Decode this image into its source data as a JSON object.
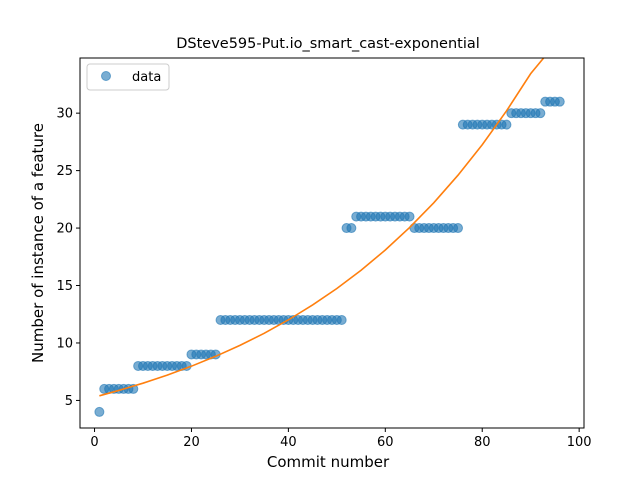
{
  "chart_data": {
    "type": "scatter",
    "title": "DSteve595-Put.io_smart_cast-exponential",
    "xlabel": "Commit number",
    "ylabel": "Number of instance of a feature",
    "xlim": [
      -3,
      101
    ],
    "ylim": [
      2.6,
      34.8
    ],
    "xticks": [
      0,
      20,
      40,
      60,
      80,
      100
    ],
    "yticks": [
      5,
      10,
      15,
      20,
      25,
      30
    ],
    "grid": false,
    "legend": {
      "position": "top-left",
      "entries": [
        "data"
      ]
    },
    "colors": {
      "points": "#1f77b4",
      "fit": "#ff7f0e"
    },
    "series": [
      {
        "name": "data",
        "kind": "scatter",
        "x": [
          1,
          2,
          3,
          4,
          5,
          6,
          7,
          8,
          9,
          10,
          11,
          12,
          13,
          14,
          15,
          16,
          17,
          18,
          19,
          20,
          21,
          22,
          23,
          24,
          25,
          26,
          27,
          28,
          29,
          30,
          31,
          32,
          33,
          34,
          35,
          36,
          37,
          38,
          39,
          40,
          41,
          42,
          43,
          44,
          45,
          46,
          47,
          48,
          49,
          50,
          51,
          52,
          53,
          54,
          55,
          56,
          57,
          58,
          59,
          60,
          61,
          62,
          63,
          64,
          65,
          66,
          67,
          68,
          69,
          70,
          71,
          72,
          73,
          74,
          75,
          76,
          77,
          78,
          79,
          80,
          81,
          82,
          83,
          84,
          85,
          86,
          87,
          88,
          89,
          90,
          91,
          92,
          93,
          94,
          95,
          96
        ],
        "y": [
          4,
          6,
          6,
          6,
          6,
          6,
          6,
          6,
          8,
          8,
          8,
          8,
          8,
          8,
          8,
          8,
          8,
          8,
          8,
          9,
          9,
          9,
          9,
          9,
          9,
          12,
          12,
          12,
          12,
          12,
          12,
          12,
          12,
          12,
          12,
          12,
          12,
          12,
          12,
          12,
          12,
          12,
          12,
          12,
          12,
          12,
          12,
          12,
          12,
          12,
          12,
          20,
          20,
          21,
          21,
          21,
          21,
          21,
          21,
          21,
          21,
          21,
          21,
          21,
          21,
          20,
          20,
          20,
          20,
          20,
          20,
          20,
          20,
          20,
          20,
          29,
          29,
          29,
          29,
          29,
          29,
          29,
          29,
          29,
          29,
          30,
          30,
          30,
          30,
          30,
          30,
          30,
          31,
          31,
          31,
          31
        ]
      },
      {
        "name": "",
        "kind": "line",
        "x": [
          1,
          5,
          10,
          15,
          20,
          25,
          30,
          35,
          40,
          45,
          50,
          55,
          60,
          65,
          70,
          75,
          80,
          85,
          90,
          96
        ],
        "y": [
          5.4,
          5.87,
          6.5,
          7.2,
          7.98,
          8.84,
          9.79,
          10.84,
          12.01,
          13.31,
          14.74,
          16.33,
          18.09,
          20.04,
          22.2,
          24.6,
          27.25,
          30.19,
          33.44,
          36.5
        ]
      }
    ]
  }
}
